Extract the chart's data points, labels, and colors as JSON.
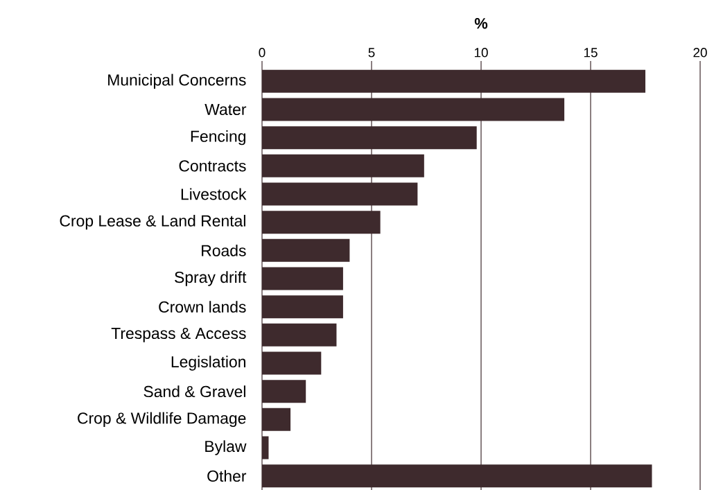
{
  "chart_data": {
    "type": "bar",
    "orientation": "horizontal",
    "xlabel": "%",
    "categories": [
      "Municipal Concerns",
      "Water",
      "Fencing",
      "Contracts",
      "Livestock",
      "Crop Lease & Land Rental",
      "Roads",
      "Spray drift",
      "Crown lands",
      "Trespass & Access",
      "Legislation",
      "Sand & Gravel",
      "Crop & Wildlife Damage",
      "Bylaw",
      "Other"
    ],
    "values": [
      17.5,
      13.8,
      9.8,
      7.4,
      7.1,
      5.4,
      4.0,
      3.7,
      3.7,
      3.4,
      2.7,
      2.0,
      1.3,
      0.3,
      17.8
    ],
    "color": "#3e2a2d",
    "xlim": [
      0,
      20
    ],
    "xticks": [
      0,
      5,
      10,
      15,
      20
    ],
    "grid": "x"
  }
}
